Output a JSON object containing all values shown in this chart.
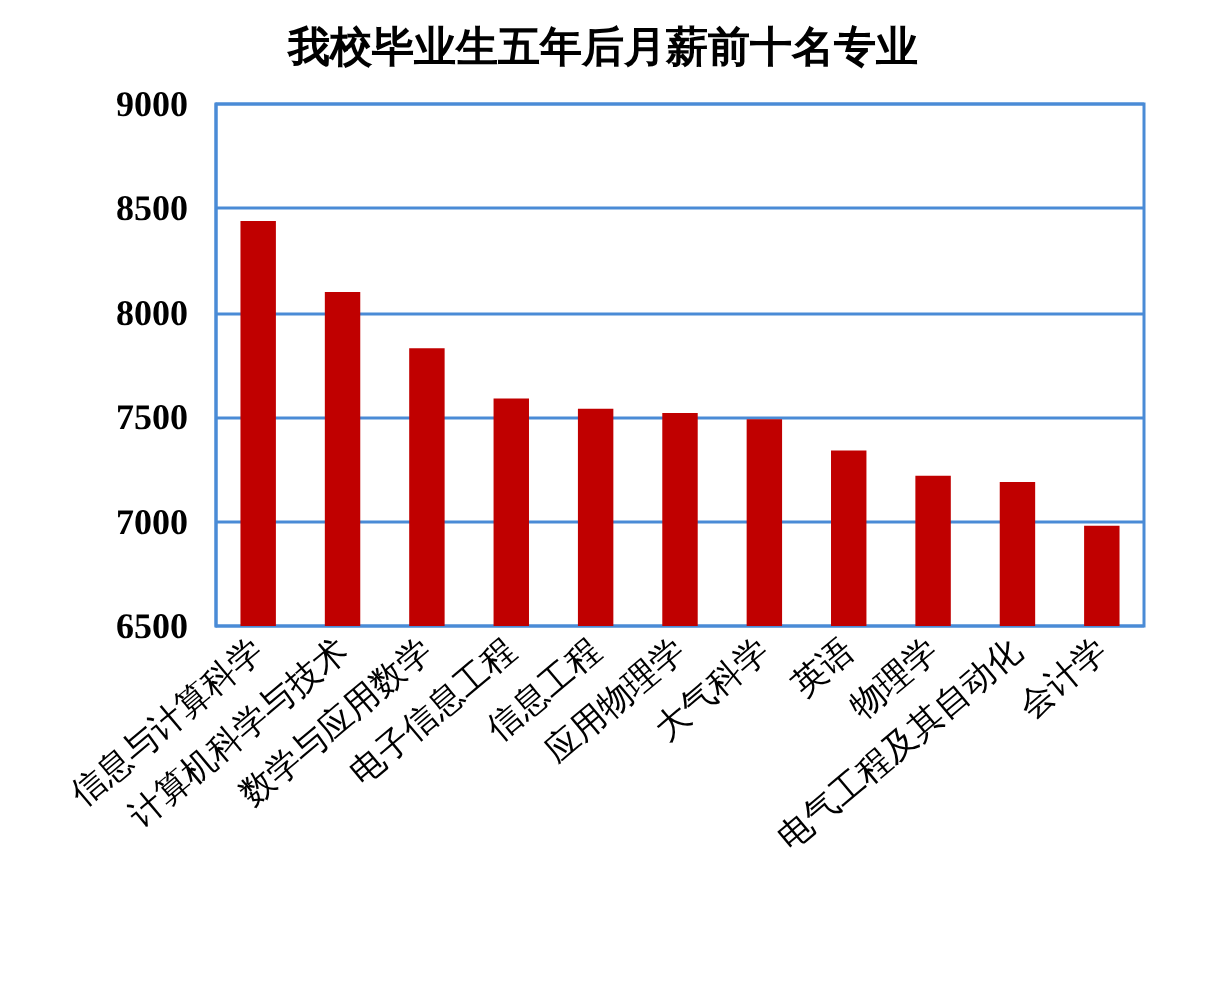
{
  "chart_data": {
    "type": "bar",
    "title": "我校毕业生五年后月薪前十名专业",
    "categories": [
      "信息与计算科学",
      "计算机科学与技术",
      "数学与应用数学",
      "电子信息工程",
      "信息工程",
      "应用物理学",
      "大气科学",
      "英语",
      "物理学",
      "电气工程及其自动化",
      "会计学"
    ],
    "values": [
      8440,
      8100,
      7830,
      7590,
      7540,
      7520,
      7490,
      7340,
      7220,
      7190,
      6980
    ],
    "color": "#c00000",
    "ylim": [
      6500,
      9000
    ],
    "yticks": [
      6500,
      7000,
      7500,
      8000,
      8500,
      9000
    ],
    "grid": true
  }
}
